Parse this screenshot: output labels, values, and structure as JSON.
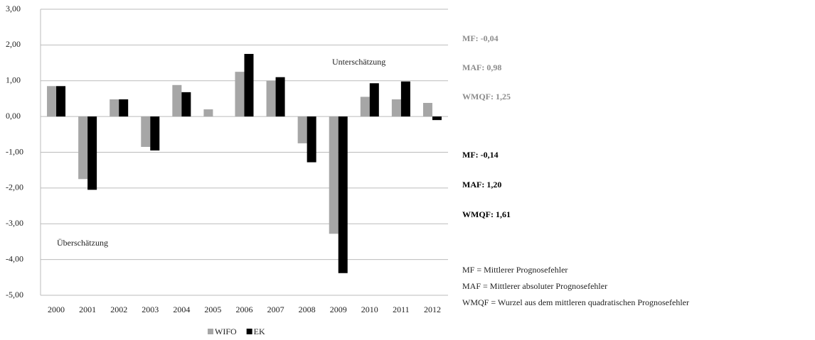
{
  "chart_data": {
    "type": "bar",
    "categories": [
      "2000",
      "2001",
      "2002",
      "2003",
      "2004",
      "2005",
      "2006",
      "2007",
      "2008",
      "2009",
      "2010",
      "2011",
      "2012"
    ],
    "series": [
      {
        "name": "WIFO",
        "color": "#a6a6a6",
        "values": [
          0.85,
          -1.75,
          0.48,
          -0.85,
          0.88,
          0.2,
          1.25,
          1.0,
          -0.75,
          -3.28,
          0.55,
          0.48,
          0.38
        ]
      },
      {
        "name": "EK",
        "color": "#000000",
        "values": [
          0.85,
          -2.05,
          0.48,
          -0.95,
          0.68,
          0,
          1.75,
          1.1,
          -1.28,
          -4.38,
          0.93,
          0.98,
          -0.1
        ]
      }
    ],
    "ylim": [
      -5,
      3
    ],
    "yticks": [
      {
        "value": 3,
        "label": "3,00"
      },
      {
        "value": 2,
        "label": "2,00"
      },
      {
        "value": 1,
        "label": "1,00"
      },
      {
        "value": 0,
        "label": "0,00"
      },
      {
        "value": -1,
        "label": "-1,00"
      },
      {
        "value": -2,
        "label": "-2,00"
      },
      {
        "value": -3,
        "label": "-3,00"
      },
      {
        "value": -4,
        "label": "-4,00"
      },
      {
        "value": -5,
        "label": "-5,00"
      }
    ],
    "grid": true,
    "legend": "bottom",
    "annotations": [
      "Unterschätzung",
      "Überschätzung"
    ]
  },
  "stats_wifo": [
    "MF: -0,04",
    "MAF: 0,98",
    "WMQF: 1,25"
  ],
  "stats_ek": [
    "MF: -0,14",
    "MAF: 1,20",
    "WMQF: 1,61"
  ],
  "notes": [
    "MF = Mittlerer Prognosefehler",
    "MAF = Mittlerer absoluter Prognosefehler",
    "WMQF = Wurzel aus dem mittleren quadratischen Prognosefehler"
  ]
}
